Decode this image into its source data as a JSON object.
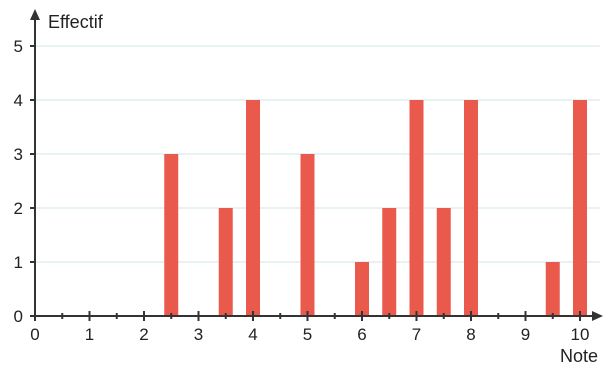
{
  "chart_data": {
    "type": "bar",
    "title": "",
    "xlabel": "Note",
    "ylabel": "Effectif",
    "x": [
      2.5,
      3.5,
      4,
      5,
      6,
      6.5,
      7,
      7.5,
      8,
      9.5,
      10
    ],
    "values": [
      3,
      2,
      4,
      3,
      1,
      2,
      4,
      2,
      4,
      1,
      4
    ],
    "xlim": [
      0,
      10
    ],
    "ylim": [
      0,
      5
    ],
    "x_ticks": [
      "0",
      "1",
      "2",
      "3",
      "4",
      "5",
      "6",
      "7",
      "8",
      "9",
      "10"
    ],
    "y_ticks": [
      "0",
      "1",
      "2",
      "3",
      "4",
      "5"
    ],
    "grid": true,
    "colors": {
      "bar": "#ea5a4c",
      "grid": "#cfe6ea",
      "axis": "#333333"
    }
  }
}
